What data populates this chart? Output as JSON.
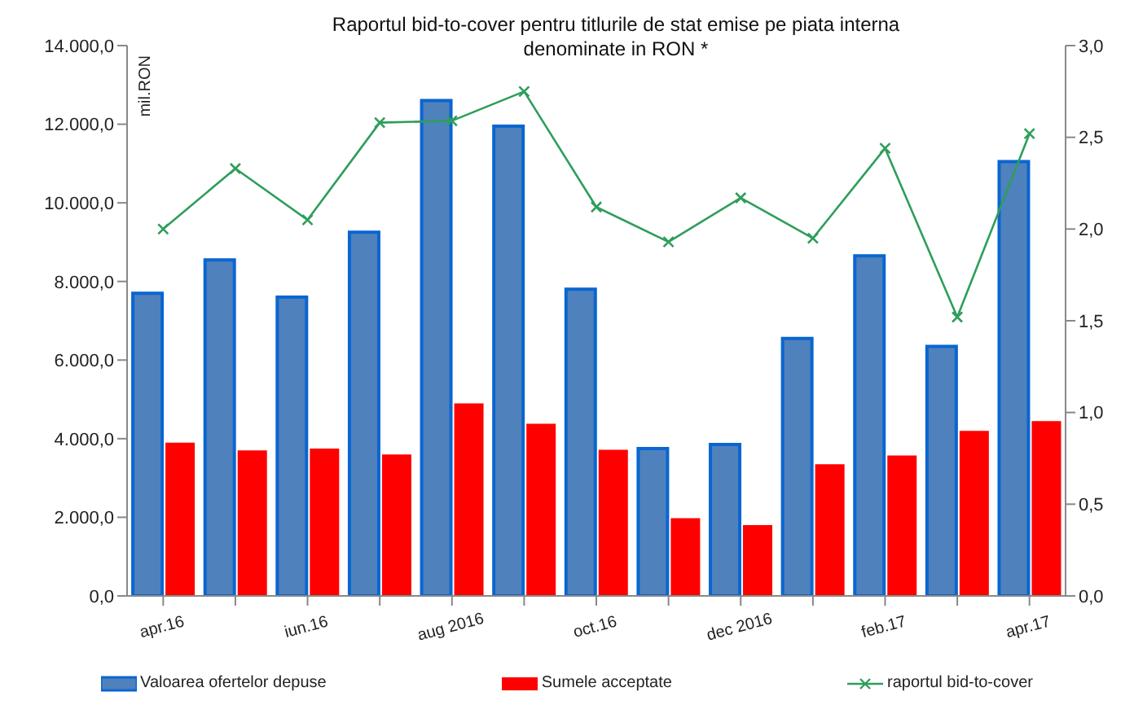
{
  "chart_data": {
    "type": "bar",
    "title": "Raportul bid-to-cover pentru titlurile de stat emise pe piata interna\ndenominate in RON *",
    "ylabel": "mil.RON",
    "categories": [
      "apr.16",
      null,
      "iun.16",
      null,
      "aug 2016",
      null,
      "oct.16",
      null,
      "dec 2016",
      null,
      "feb.17",
      null,
      "apr.17"
    ],
    "series": [
      {
        "name": "Valoarea ofertelor depuse",
        "color": "#4f81bd",
        "values": [
          7700,
          8550,
          7600,
          9250,
          12600,
          11950,
          7800,
          3750,
          3850,
          6550,
          8650,
          6350,
          11050
        ]
      },
      {
        "name": "Sumele acceptate",
        "color": "#ff0000",
        "values": [
          3900,
          3700,
          3750,
          3600,
          4900,
          4380,
          3720,
          1980,
          1800,
          3350,
          3570,
          4200,
          4450
        ]
      },
      {
        "name": "raportul bid-to-cover",
        "type": "line",
        "axis": "y2",
        "color": "#2e9e5b",
        "values": [
          2.0,
          2.33,
          2.05,
          2.58,
          2.59,
          2.75,
          2.12,
          1.93,
          2.17,
          1.95,
          2.44,
          1.52,
          2.52
        ]
      }
    ],
    "ylim": [
      0,
      14000
    ],
    "yticks": [
      {
        "value": 0,
        "label": "0,0"
      },
      {
        "value": 2000,
        "label": "2.000,0"
      },
      {
        "value": 4000,
        "label": "4.000,0"
      },
      {
        "value": 6000,
        "label": "6.000,0"
      },
      {
        "value": 8000,
        "label": "8.000,0"
      },
      {
        "value": 10000,
        "label": "10.000,0"
      },
      {
        "value": 12000,
        "label": "12.000,0"
      },
      {
        "value": 14000,
        "label": "14.000,0"
      }
    ],
    "y2lim": [
      0,
      3
    ],
    "y2ticks": [
      {
        "value": 0,
        "label": "0,0"
      },
      {
        "value": 0.5,
        "label": "0,5"
      },
      {
        "value": 1,
        "label": "1,0"
      },
      {
        "value": 1.5,
        "label": "1,5"
      },
      {
        "value": 2,
        "label": "2,0"
      },
      {
        "value": 2.5,
        "label": "2,5"
      },
      {
        "value": 3,
        "label": "3,0"
      }
    ],
    "grid": false,
    "legend": "bottom",
    "marker": "cross"
  }
}
